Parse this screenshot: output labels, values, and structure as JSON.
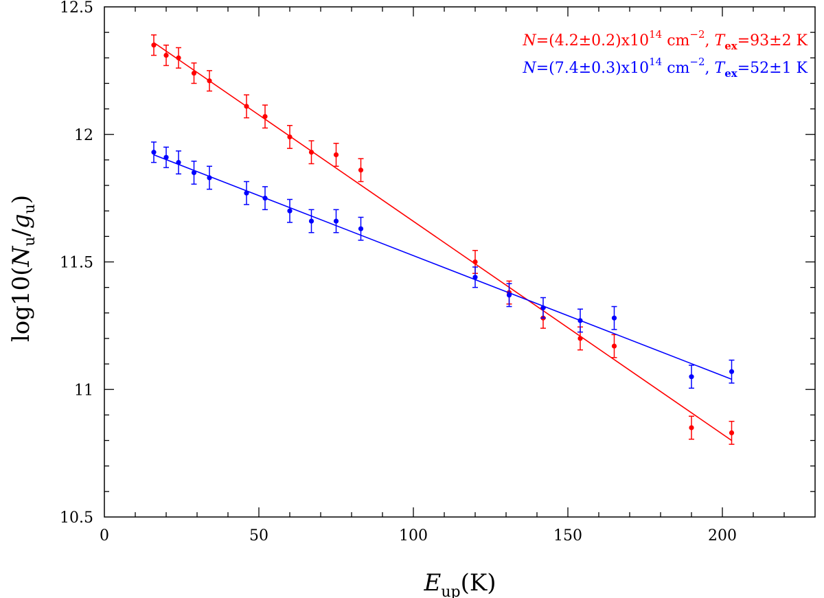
{
  "chart_data": {
    "type": "scatter",
    "title": "",
    "xlabel": {
      "main": "E",
      "sub": "up",
      "unit": "(K)"
    },
    "ylabel": {
      "prefix": "log10(",
      "n": "N",
      "n_sub": "u",
      "slash": "/",
      "g": "g",
      "g_sub": "u",
      "suffix": ")"
    },
    "xlim": [
      0,
      230
    ],
    "ylim": [
      10.5,
      12.5
    ],
    "x_ticks": [
      0,
      50,
      100,
      150,
      200
    ],
    "x_tick_labels": [
      "0",
      "50",
      "100",
      "150",
      "200"
    ],
    "y_ticks": [
      10.5,
      11,
      11.5,
      12,
      12.5
    ],
    "y_tick_labels": [
      "10.5",
      "11",
      "11.5",
      "12",
      "12.5"
    ],
    "grid": false,
    "legend_position": "top-right",
    "series": [
      {
        "name": "red",
        "color": "#ff0000",
        "legend": {
          "n_sym": "N",
          "n_text": "=(4.2±0.2)x10",
          "exp": "14",
          "unit": " cm",
          "unit_exp": "−2",
          "sep": ", ",
          "t_sym": "T",
          "t_sub": "ex",
          "t_text": "=93±2 K"
        },
        "fit": {
          "x": [
            16,
            203
          ],
          "y": [
            12.36,
            10.8
          ]
        },
        "points": [
          {
            "x": 16,
            "y": 12.35,
            "err": 0.04
          },
          {
            "x": 20,
            "y": 12.31,
            "err": 0.04
          },
          {
            "x": 24,
            "y": 12.3,
            "err": 0.04
          },
          {
            "x": 29,
            "y": 12.24,
            "err": 0.04
          },
          {
            "x": 34,
            "y": 12.21,
            "err": 0.04
          },
          {
            "x": 46,
            "y": 12.11,
            "err": 0.045
          },
          {
            "x": 52,
            "y": 12.07,
            "err": 0.045
          },
          {
            "x": 60,
            "y": 11.99,
            "err": 0.045
          },
          {
            "x": 67,
            "y": 11.93,
            "err": 0.045
          },
          {
            "x": 75,
            "y": 11.92,
            "err": 0.045
          },
          {
            "x": 83,
            "y": 11.86,
            "err": 0.045
          },
          {
            "x": 120,
            "y": 11.5,
            "err": 0.045
          },
          {
            "x": 131,
            "y": 11.38,
            "err": 0.045
          },
          {
            "x": 142,
            "y": 11.28,
            "err": 0.04
          },
          {
            "x": 154,
            "y": 11.2,
            "err": 0.045
          },
          {
            "x": 165,
            "y": 11.17,
            "err": 0.045
          },
          {
            "x": 190,
            "y": 10.85,
            "err": 0.045
          },
          {
            "x": 203,
            "y": 10.83,
            "err": 0.045
          }
        ]
      },
      {
        "name": "blue",
        "color": "#0000ff",
        "legend": {
          "n_sym": "N",
          "n_text": "=(7.4±0.3)x10",
          "exp": "14",
          "unit": " cm",
          "unit_exp": "−2",
          "sep": ", ",
          "t_sym": "T",
          "t_sub": "ex",
          "t_text": "=52±1 K"
        },
        "fit": {
          "x": [
            16,
            203
          ],
          "y": [
            11.92,
            11.04
          ]
        },
        "points": [
          {
            "x": 16,
            "y": 11.93,
            "err": 0.04
          },
          {
            "x": 20,
            "y": 11.91,
            "err": 0.04
          },
          {
            "x": 24,
            "y": 11.89,
            "err": 0.045
          },
          {
            "x": 29,
            "y": 11.85,
            "err": 0.045
          },
          {
            "x": 34,
            "y": 11.83,
            "err": 0.045
          },
          {
            "x": 46,
            "y": 11.77,
            "err": 0.045
          },
          {
            "x": 52,
            "y": 11.75,
            "err": 0.045
          },
          {
            "x": 60,
            "y": 11.7,
            "err": 0.045
          },
          {
            "x": 67,
            "y": 11.66,
            "err": 0.045
          },
          {
            "x": 75,
            "y": 11.66,
            "err": 0.045
          },
          {
            "x": 83,
            "y": 11.63,
            "err": 0.045
          },
          {
            "x": 120,
            "y": 11.44,
            "err": 0.04
          },
          {
            "x": 131,
            "y": 11.37,
            "err": 0.045
          },
          {
            "x": 142,
            "y": 11.32,
            "err": 0.04
          },
          {
            "x": 154,
            "y": 11.27,
            "err": 0.045
          },
          {
            "x": 165,
            "y": 11.28,
            "err": 0.045
          },
          {
            "x": 190,
            "y": 11.05,
            "err": 0.045
          },
          {
            "x": 203,
            "y": 11.07,
            "err": 0.045
          }
        ]
      }
    ]
  }
}
